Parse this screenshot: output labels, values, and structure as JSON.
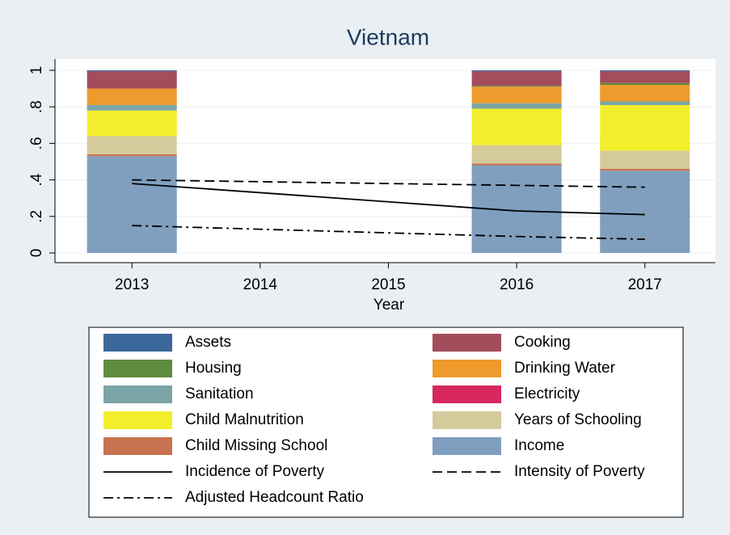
{
  "chart_data": {
    "type": "bar",
    "title": "Vietnam",
    "xlabel": "Year",
    "x": [
      2013,
      2016,
      2017
    ],
    "xlim": [
      2012.4,
      2017.55
    ],
    "xticks": [
      2013,
      2014,
      2015,
      2016,
      2017
    ],
    "ylim": [
      0,
      1
    ],
    "yticks": [
      0,
      {
        "value": 0.2,
        "label": ".2"
      },
      {
        "value": 0.4,
        "label": ".4"
      },
      {
        "value": 0.6,
        "label": ".6"
      },
      {
        "value": 0.8,
        "label": ".8"
      },
      1
    ],
    "grid": true,
    "bar_width": 0.7,
    "series": [
      {
        "name": "Assets",
        "color": "#3b679a",
        "values": [
          0.005,
          0.005,
          0.005
        ]
      },
      {
        "name": "Cooking",
        "color": "#a34d5c",
        "values": [
          0.095,
          0.08,
          0.065
        ]
      },
      {
        "name": "Housing",
        "color": "#5f8c3f",
        "values": [
          0,
          0.005,
          0.01
        ]
      },
      {
        "name": "Drinking Water",
        "color": "#ef9a2c",
        "values": [
          0.09,
          0.09,
          0.09
        ]
      },
      {
        "name": "Sanitation",
        "color": "#7ba4a6",
        "values": [
          0.03,
          0.03,
          0.02
        ]
      },
      {
        "name": "Electricity",
        "color": "#d6285c",
        "values": [
          0,
          0,
          0
        ]
      },
      {
        "name": "Child Malnutrition",
        "color": "#f3ee2c",
        "values": [
          0.14,
          0.2,
          0.25
        ]
      },
      {
        "name": "Years of Schooling",
        "color": "#d5ca9c",
        "values": [
          0.1,
          0.1,
          0.1
        ]
      },
      {
        "name": "Child Missing School",
        "color": "#c8734f",
        "values": [
          0.01,
          0.01,
          0.01
        ]
      },
      {
        "name": "Income",
        "color": "#809fbf",
        "values": [
          0.53,
          0.48,
          0.45
        ]
      }
    ],
    "lines": [
      {
        "name": "Incidence of Poverty",
        "color": "#000000",
        "dash": "solid",
        "values": [
          0.38,
          0.23,
          0.21
        ]
      },
      {
        "name": "Intensity of Poverty",
        "color": "#000000",
        "dash": "dash",
        "values": [
          0.4,
          0.37,
          0.36
        ]
      },
      {
        "name": "Adjusted Headcount Ratio",
        "color": "#000000",
        "dash": "dashdot",
        "values": [
          0.15,
          0.09,
          0.075
        ]
      }
    ]
  }
}
